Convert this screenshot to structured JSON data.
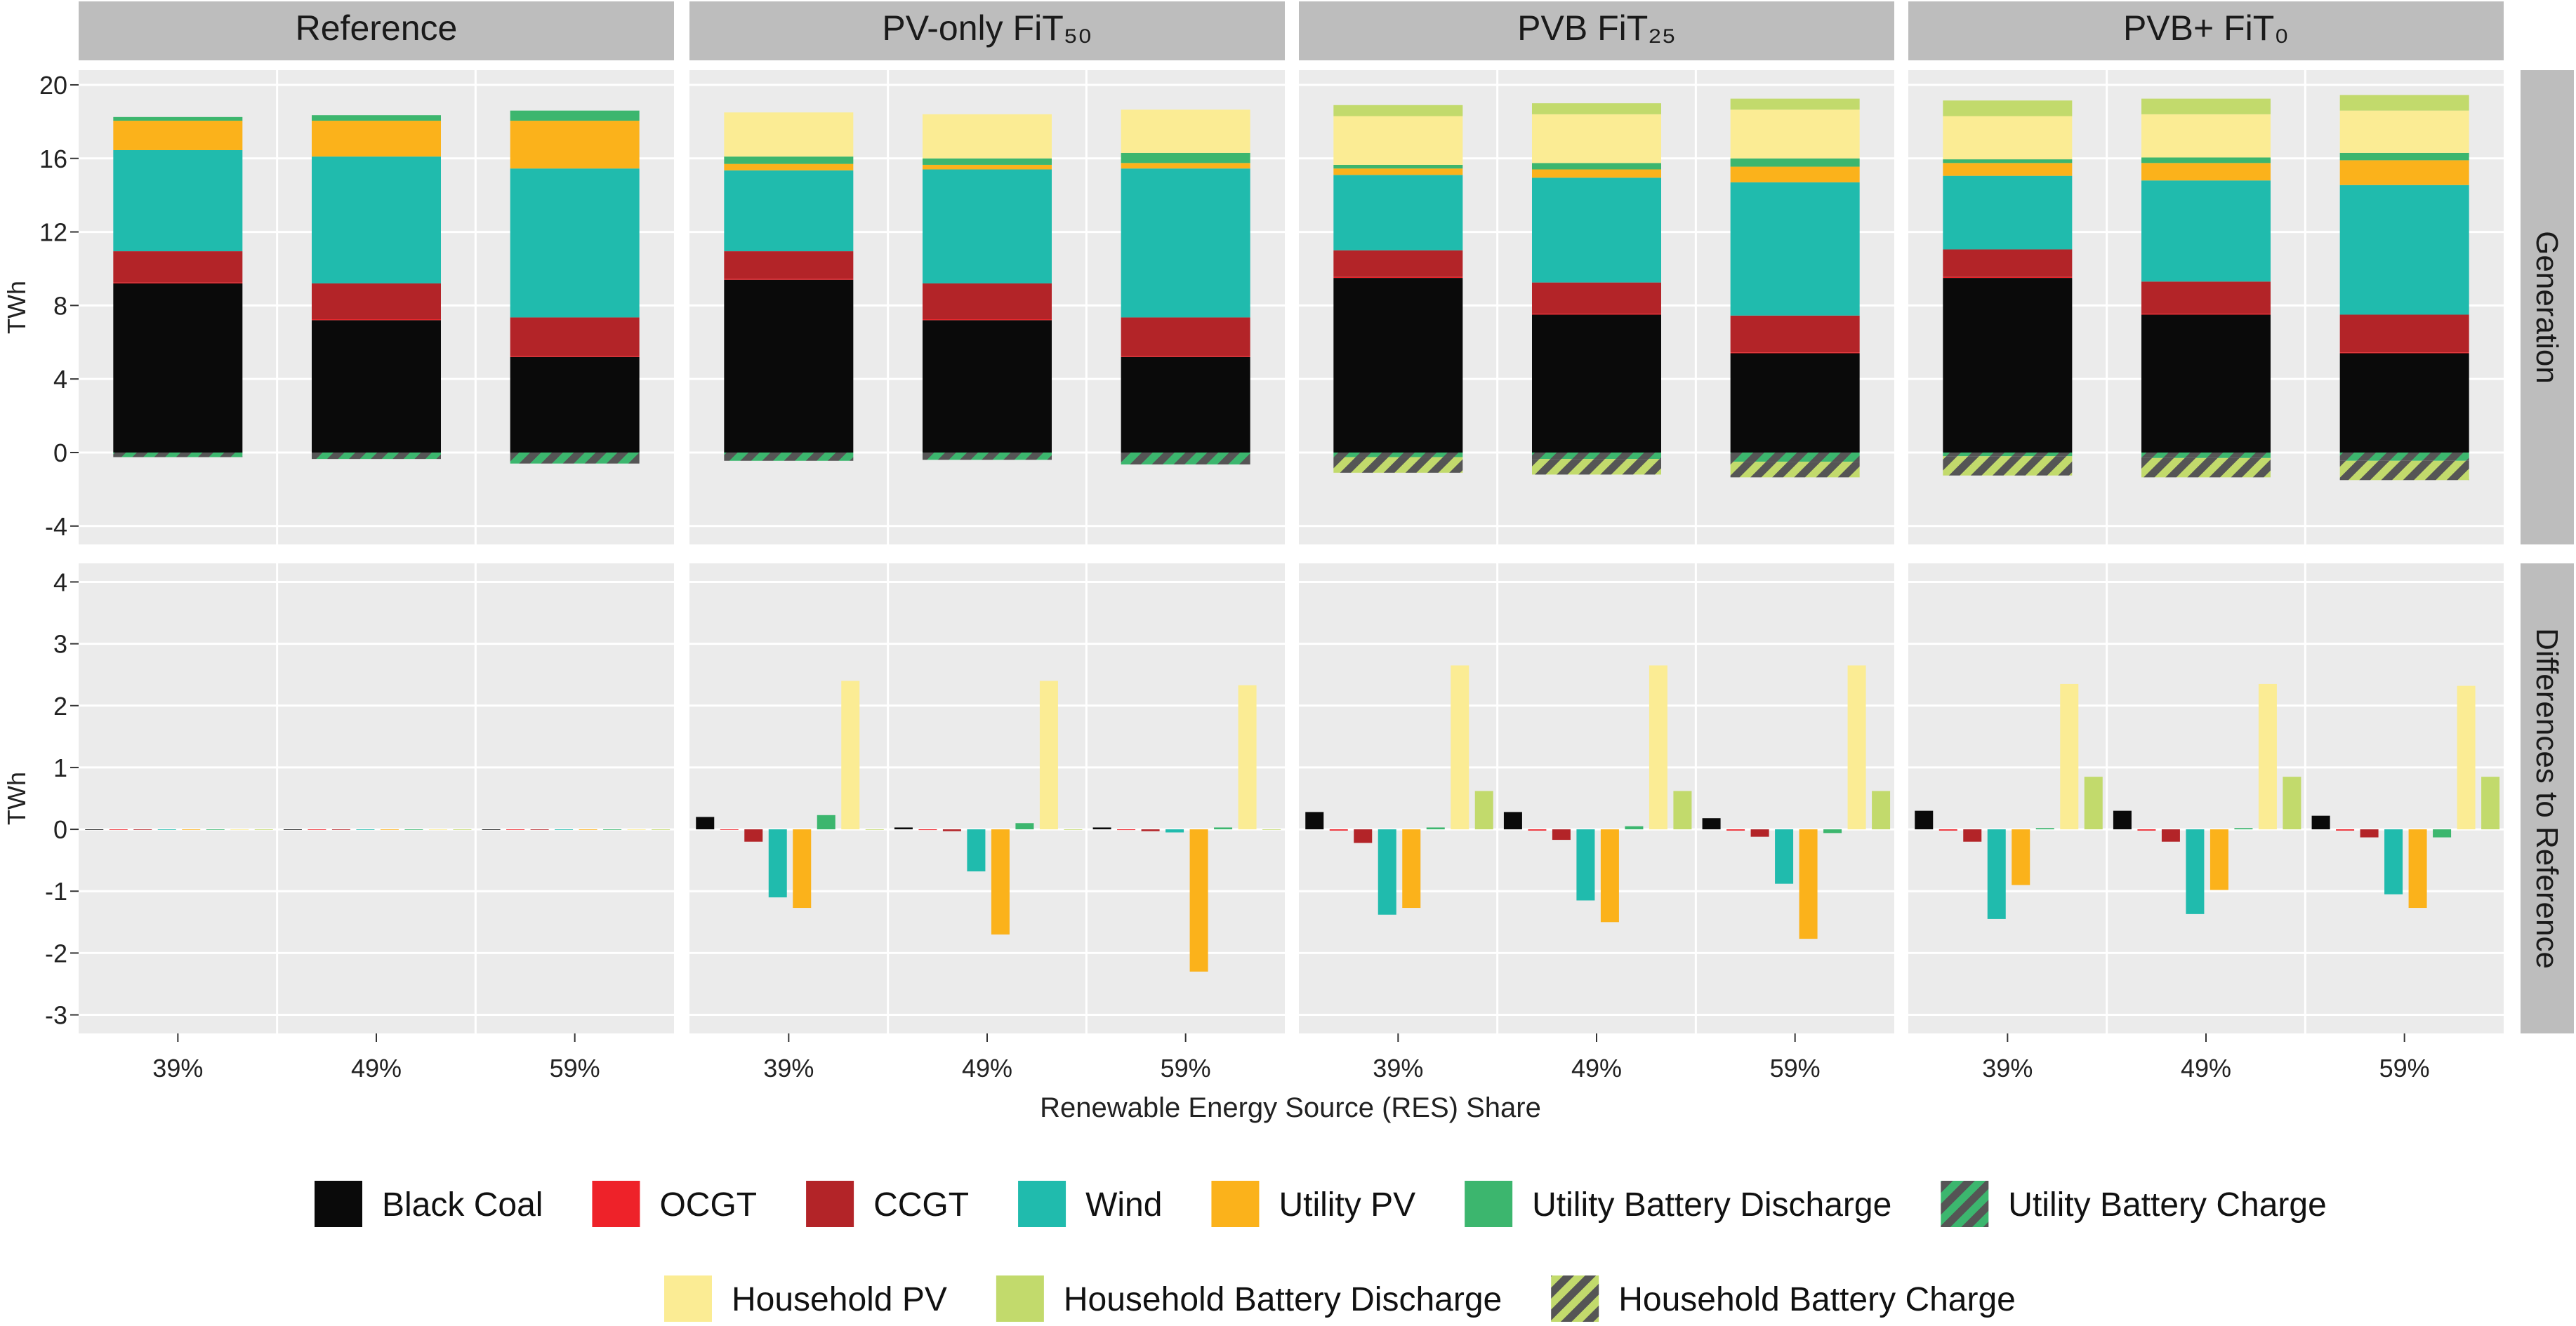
{
  "chart_data": {
    "type": "bar",
    "xlabel": "Renewable Energy Source (RES) Share",
    "facets": [
      "Reference",
      "PV-only FiT₅₀",
      "PVB FiT₂₅",
      "PVB+ FiT₀"
    ],
    "row_strips": [
      "Generation",
      "Differences to Reference"
    ],
    "categories": [
      "39%",
      "49%",
      "59%"
    ],
    "series_order": [
      "Black Coal",
      "OCGT",
      "CCGT",
      "Wind",
      "Utility PV",
      "Utility Battery Discharge",
      "Utility Battery Charge",
      "Household PV",
      "Household Battery Discharge",
      "Household Battery Charge"
    ],
    "colors": {
      "Black Coal": "#0a0a0a",
      "OCGT": "#ee2229",
      "CCGT": "#b32428",
      "Wind": "#20bbad",
      "Utility PV": "#fbb21b",
      "Utility Battery Discharge": "#3cb66e",
      "Utility Battery Charge": "#3cb66e",
      "Household PV": "#fbec94",
      "Household Battery Discharge": "#c2da6c",
      "Household Battery Charge": "#c2da6c"
    },
    "hatched_series": [
      "Utility Battery Charge",
      "Household Battery Charge"
    ],
    "hatch_color": "#555555",
    "generation": {
      "ylabel": "TWh",
      "ylim": [
        -5,
        20.8
      ],
      "ticks": [
        -4,
        0,
        4,
        8,
        12,
        16,
        20
      ],
      "tick_labels": [
        "-4",
        "0",
        "4",
        "8",
        "12",
        "16",
        "20"
      ],
      "panels": [
        {
          "stacks": [
            {
              "Black Coal": 9.2,
              "OCGT": 0.05,
              "CCGT": 1.7,
              "Wind": 5.5,
              "Utility PV": 1.6,
              "Utility Battery Discharge": 0.2,
              "Utility Battery Charge": -0.25,
              "Household PV": 0,
              "Household Battery Discharge": 0,
              "Household Battery Charge": 0
            },
            {
              "Black Coal": 7.2,
              "OCGT": 0.05,
              "CCGT": 1.95,
              "Wind": 6.9,
              "Utility PV": 1.95,
              "Utility Battery Discharge": 0.3,
              "Utility Battery Charge": -0.35,
              "Household PV": 0,
              "Household Battery Discharge": 0,
              "Household Battery Charge": 0
            },
            {
              "Black Coal": 5.2,
              "OCGT": 0.05,
              "CCGT": 2.1,
              "Wind": 8.1,
              "Utility PV": 2.6,
              "Utility Battery Discharge": 0.55,
              "Utility Battery Charge": -0.6,
              "Household PV": 0,
              "Household Battery Discharge": 0,
              "Household Battery Charge": 0
            }
          ]
        },
        {
          "stacks": [
            {
              "Black Coal": 9.4,
              "OCGT": 0.05,
              "CCGT": 1.5,
              "Wind": 4.4,
              "Utility PV": 0.35,
              "Utility Battery Discharge": 0.4,
              "Utility Battery Charge": -0.45,
              "Household PV": 2.4,
              "Household Battery Discharge": 0,
              "Household Battery Charge": 0
            },
            {
              "Black Coal": 7.2,
              "OCGT": 0.05,
              "CCGT": 1.95,
              "Wind": 6.2,
              "Utility PV": 0.25,
              "Utility Battery Discharge": 0.35,
              "Utility Battery Charge": -0.4,
              "Household PV": 2.4,
              "Household Battery Discharge": 0,
              "Household Battery Charge": 0
            },
            {
              "Black Coal": 5.2,
              "OCGT": 0.05,
              "CCGT": 2.1,
              "Wind": 8.1,
              "Utility PV": 0.3,
              "Utility Battery Discharge": 0.55,
              "Utility Battery Charge": -0.65,
              "Household PV": 2.35,
              "Household Battery Discharge": 0,
              "Household Battery Charge": 0
            }
          ]
        },
        {
          "stacks": [
            {
              "Black Coal": 9.5,
              "OCGT": 0.05,
              "CCGT": 1.45,
              "Wind": 4.1,
              "Utility PV": 0.35,
              "Utility Battery Discharge": 0.2,
              "Utility Battery Charge": -0.25,
              "Household PV": 2.65,
              "Household Battery Discharge": 0.6,
              "Household Battery Charge": -0.85
            },
            {
              "Black Coal": 7.5,
              "OCGT": 0.05,
              "CCGT": 1.7,
              "Wind": 5.7,
              "Utility PV": 0.45,
              "Utility Battery Discharge": 0.35,
              "Utility Battery Charge": -0.35,
              "Household PV": 2.65,
              "Household Battery Discharge": 0.6,
              "Household Battery Charge": -0.85
            },
            {
              "Black Coal": 5.4,
              "OCGT": 0.05,
              "CCGT": 2.0,
              "Wind": 7.25,
              "Utility PV": 0.85,
              "Utility Battery Discharge": 0.45,
              "Utility Battery Charge": -0.5,
              "Household PV": 2.65,
              "Household Battery Discharge": 0.6,
              "Household Battery Charge": -0.85
            }
          ]
        },
        {
          "stacks": [
            {
              "Black Coal": 9.5,
              "OCGT": 0.05,
              "CCGT": 1.5,
              "Wind": 4.0,
              "Utility PV": 0.7,
              "Utility Battery Discharge": 0.2,
              "Utility Battery Charge": -0.2,
              "Household PV": 2.35,
              "Household Battery Discharge": 0.85,
              "Household Battery Charge": -1.05
            },
            {
              "Black Coal": 7.5,
              "OCGT": 0.05,
              "CCGT": 1.75,
              "Wind": 5.5,
              "Utility PV": 0.95,
              "Utility Battery Discharge": 0.3,
              "Utility Battery Charge": -0.3,
              "Household PV": 2.35,
              "Household Battery Discharge": 0.85,
              "Household Battery Charge": -1.05
            },
            {
              "Black Coal": 5.4,
              "OCGT": 0.05,
              "CCGT": 2.05,
              "Wind": 7.05,
              "Utility PV": 1.35,
              "Utility Battery Discharge": 0.4,
              "Utility Battery Charge": -0.45,
              "Household PV": 2.3,
              "Household Battery Discharge": 0.85,
              "Household Battery Charge": -1.05
            }
          ]
        }
      ]
    },
    "differences": {
      "ylabel": "TWh",
      "ylim": [
        -3.3,
        4.3
      ],
      "ticks": [
        -3,
        -2,
        -1,
        0,
        1,
        2,
        3,
        4
      ],
      "tick_labels": [
        "-3",
        "-2",
        "-1",
        "0",
        "1",
        "2",
        "3",
        "4"
      ],
      "panels": [
        {
          "groups": [
            {
              "Black Coal": 0,
              "OCGT": 0,
              "CCGT": 0,
              "Wind": 0,
              "Utility PV": 0,
              "Utility Battery Discharge": 0,
              "Household PV": 0,
              "Household Battery Discharge": 0
            },
            {
              "Black Coal": 0,
              "OCGT": 0,
              "CCGT": 0,
              "Wind": 0,
              "Utility PV": 0,
              "Utility Battery Discharge": 0,
              "Household PV": 0,
              "Household Battery Discharge": 0
            },
            {
              "Black Coal": 0,
              "OCGT": 0,
              "CCGT": 0,
              "Wind": 0,
              "Utility PV": 0,
              "Utility Battery Discharge": 0,
              "Household PV": 0,
              "Household Battery Discharge": 0
            }
          ]
        },
        {
          "groups": [
            {
              "Black Coal": 0.2,
              "OCGT": 0,
              "CCGT": -0.2,
              "Wind": -1.1,
              "Utility PV": -1.27,
              "Utility Battery Discharge": 0.23,
              "Household PV": 2.4,
              "Household Battery Discharge": 0
            },
            {
              "Black Coal": 0.03,
              "OCGT": -0.01,
              "CCGT": -0.03,
              "Wind": -0.68,
              "Utility PV": -1.7,
              "Utility Battery Discharge": 0.1,
              "Household PV": 2.4,
              "Household Battery Discharge": 0
            },
            {
              "Black Coal": 0.03,
              "OCGT": -0.01,
              "CCGT": -0.03,
              "Wind": -0.05,
              "Utility PV": -2.3,
              "Utility Battery Discharge": 0.03,
              "Household PV": 2.33,
              "Household Battery Discharge": 0
            }
          ]
        },
        {
          "groups": [
            {
              "Black Coal": 0.28,
              "OCGT": -0.02,
              "CCGT": -0.22,
              "Wind": -1.38,
              "Utility PV": -1.27,
              "Utility Battery Discharge": 0.03,
              "Household PV": 2.65,
              "Household Battery Discharge": 0.62
            },
            {
              "Black Coal": 0.28,
              "OCGT": -0.02,
              "CCGT": -0.17,
              "Wind": -1.15,
              "Utility PV": -1.5,
              "Utility Battery Discharge": 0.05,
              "Household PV": 2.65,
              "Household Battery Discharge": 0.62
            },
            {
              "Black Coal": 0.18,
              "OCGT": -0.02,
              "CCGT": -0.12,
              "Wind": -0.88,
              "Utility PV": -1.77,
              "Utility Battery Discharge": -0.06,
              "Household PV": 2.65,
              "Household Battery Discharge": 0.62
            }
          ]
        },
        {
          "groups": [
            {
              "Black Coal": 0.3,
              "OCGT": -0.02,
              "CCGT": -0.2,
              "Wind": -1.45,
              "Utility PV": -0.9,
              "Utility Battery Discharge": 0.02,
              "Household PV": 2.35,
              "Household Battery Discharge": 0.85
            },
            {
              "Black Coal": 0.3,
              "OCGT": -0.02,
              "CCGT": -0.2,
              "Wind": -1.37,
              "Utility PV": -0.98,
              "Utility Battery Discharge": 0.02,
              "Household PV": 2.35,
              "Household Battery Discharge": 0.85
            },
            {
              "Black Coal": 0.22,
              "OCGT": -0.02,
              "CCGT": -0.13,
              "Wind": -1.05,
              "Utility PV": -1.27,
              "Utility Battery Discharge": -0.13,
              "Household PV": 2.32,
              "Household Battery Discharge": 0.85
            }
          ]
        }
      ]
    },
    "legend": [
      [
        "Black Coal",
        "OCGT",
        "CCGT",
        "Wind",
        "Utility PV",
        "Utility Battery Discharge",
        "Utility Battery Charge"
      ],
      [
        "Household PV",
        "Household Battery Discharge",
        "Household Battery Charge"
      ]
    ],
    "legend_position": "bottom"
  }
}
